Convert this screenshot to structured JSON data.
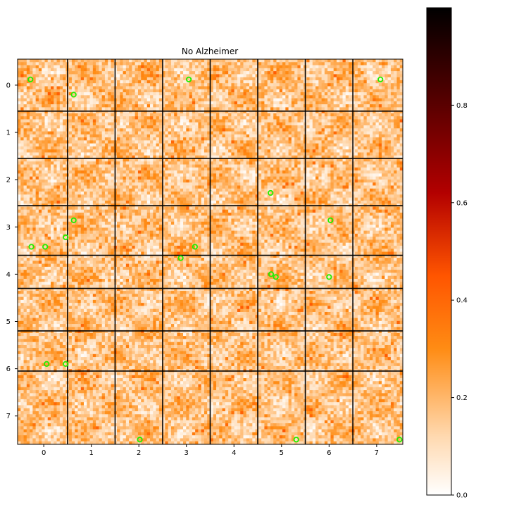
{
  "chart_data": {
    "type": "heatmap",
    "title": "No Alzheimer",
    "xlabel": "",
    "ylabel": "",
    "colormap": "gist_heat_r",
    "colors": {
      "low": "#ffffff",
      "mid_light": "#ffb36b",
      "mid": "#ff7f00",
      "mid_dark": "#b30000",
      "high": "#000000",
      "marker": "#22ee00",
      "grid_lines": "#000000"
    },
    "value_range": [
      0.0,
      1.0
    ],
    "x_ticks": [
      "0",
      "1",
      "2",
      "3",
      "4",
      "5",
      "6",
      "7"
    ],
    "y_ticks": [
      "0",
      "1",
      "2",
      "3",
      "4",
      "5",
      "6",
      "7"
    ],
    "x_tick_values": [
      0,
      1,
      2,
      3,
      4,
      5,
      6,
      7
    ],
    "y_tick_values": [
      0,
      1,
      2,
      3,
      4,
      5,
      6,
      7
    ],
    "xlim": [
      -0.55,
      7.55
    ],
    "ylim": [
      7.6,
      -0.55
    ],
    "module_boundaries_x": [
      0.5,
      1.5,
      2.5,
      3.5,
      4.5,
      5.5,
      6.5
    ],
    "module_boundaries_y": [
      0.55,
      1.55,
      2.55,
      3.6,
      4.3,
      5.2,
      6.05
    ],
    "colorbar": {
      "ticks": [
        "0.0",
        "0.2",
        "0.4",
        "0.6",
        "0.8"
      ],
      "tick_values": [
        0.0,
        0.2,
        0.4,
        0.6,
        0.8
      ]
    },
    "highlighted_points": [
      {
        "x": -0.28,
        "y": -0.12
      },
      {
        "x": 0.63,
        "y": 0.2
      },
      {
        "x": 3.05,
        "y": -0.12
      },
      {
        "x": 7.08,
        "y": -0.12
      },
      {
        "x": 4.77,
        "y": 2.28
      },
      {
        "x": 0.63,
        "y": 2.86
      },
      {
        "x": 6.03,
        "y": 2.86
      },
      {
        "x": 0.46,
        "y": 3.22
      },
      {
        "x": -0.26,
        "y": 3.42
      },
      {
        "x": 0.03,
        "y": 3.42
      },
      {
        "x": 3.18,
        "y": 3.42
      },
      {
        "x": 2.88,
        "y": 3.66
      },
      {
        "x": 4.78,
        "y": 4.0
      },
      {
        "x": 4.88,
        "y": 4.06
      },
      {
        "x": 6.0,
        "y": 4.06
      },
      {
        "x": 0.06,
        "y": 5.9
      },
      {
        "x": 0.46,
        "y": 5.9
      },
      {
        "x": 2.02,
        "y": 7.5
      },
      {
        "x": 5.31,
        "y": 7.5
      },
      {
        "x": 7.48,
        "y": 7.5
      }
    ]
  }
}
